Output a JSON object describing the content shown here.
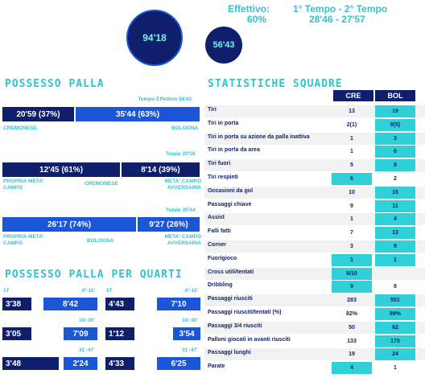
{
  "header": {
    "effettivo_label": "Effettivo:",
    "effettivo_value": "60%",
    "tempi_label": "1° Tempo - 2° Tempo",
    "tempi_value": "28'46 - 27'57",
    "circle_total": "94'18",
    "circle_eff": "56'43"
  },
  "possesso": {
    "title": "POSSESSO PALLA",
    "tempo_effettivo": "Tempo Effettivo 56'43",
    "cre_bar": "20'59 (37%)",
    "bol_bar": "35'44 (63%)",
    "cre_label": "CREMONESE",
    "bol_label": "BOLOGNA",
    "cre_total": "Totale 20'59",
    "cre_own": "12'45 (61%)",
    "cre_opp": "8'14 (39%)",
    "cre_own_label": "PROPRIA META' CAMPO",
    "cre_team": "CREMONESE",
    "cre_opp_label": "META' CAMPO AVVERSARIA",
    "bol_total": "Totale 35'44",
    "bol_own": "26'17 (74%)",
    "bol_opp": "9'27 (26%)",
    "bol_own_label": "PROPRIA META' CAMPO",
    "bol_team": "BOLOGNA",
    "bol_opp_label": "META' CAMPO AVVERSARIA"
  },
  "quarti": {
    "title": "POSSESSO PALLA PER QUARTI",
    "t1": "1T",
    "t2": "2T",
    "q1_label": "0'-15'",
    "q2_label": "16'-30'",
    "q3_label": "31'-47'",
    "q2a_label": "0'-15'",
    "q2b_label": "16'-30'",
    "q2c_label": "31'-47'",
    "t1q1_cre": "3'38",
    "t1q1_bol": "8'42",
    "t1q2_cre": "3'05",
    "t1q2_bol": "7'09",
    "t1q3_cre": "3'48",
    "t1q3_bol": "2'24",
    "t2q1_cre": "4'43",
    "t2q1_bol": "7'10",
    "t2q2_cre": "1'12",
    "t2q2_bol": "3'54",
    "t2q3_cre": "4'33",
    "t2q3_bol": "6'25"
  },
  "stats": {
    "title": "STATISTICHE SQUADRE",
    "col_cre": "CRE",
    "col_bol": "BOL",
    "rows": [
      {
        "label": "Tiri",
        "cre": "13",
        "bol": "19",
        "hl": "bol"
      },
      {
        "label": "Tiri in porta",
        "cre": "2(1)",
        "bol": "9(5)",
        "hl": "bol"
      },
      {
        "label": "Tiri in porta su azione da palla inattiva",
        "cre": "1",
        "bol": "3",
        "hl": "bol"
      },
      {
        "label": "Tiri in porta da area",
        "cre": "1",
        "bol": "6",
        "hl": "bol"
      },
      {
        "label": "Tiri fuori",
        "cre": "5",
        "bol": "8",
        "hl": "bol"
      },
      {
        "label": "Tiri respinti",
        "cre": "6",
        "bol": "2",
        "hl": "cre"
      },
      {
        "label": "Occasioni da gol",
        "cre": "10",
        "bol": "15",
        "hl": "bol"
      },
      {
        "label": "Passaggi chiave",
        "cre": "9",
        "bol": "11",
        "hl": "bol"
      },
      {
        "label": "Assist",
        "cre": "1",
        "bol": "4",
        "hl": "bol"
      },
      {
        "label": "Falli fatti",
        "cre": "7",
        "bol": "13",
        "hl": "bol"
      },
      {
        "label": "Corner",
        "cre": "3",
        "bol": "9",
        "hl": "bol"
      },
      {
        "label": "Fuorigioco",
        "cre": "1",
        "bol": "1",
        "hl": "both"
      },
      {
        "label": "Cross utili/tentati",
        "cre": "6/10",
        "bol": "",
        "hl": "cre"
      },
      {
        "label": "Dribbling",
        "cre": "9",
        "bol": "8",
        "hl": "cre"
      },
      {
        "label": "Passaggi riusciti",
        "cre": "283",
        "bol": "551",
        "hl": "bol"
      },
      {
        "label": "Passaggi riusciti/tentati (%)",
        "cre": "82%",
        "bol": "89%",
        "hl": "bol"
      },
      {
        "label": "Passaggi 3/4 riusciti",
        "cre": "50",
        "bol": "62",
        "hl": "bol"
      },
      {
        "label": "Palloni giocati in avanti riusciti",
        "cre": "133",
        "bol": "170",
        "hl": "bol"
      },
      {
        "label": "Passaggi lunghi",
        "cre": "19",
        "bol": "24",
        "hl": "bol"
      },
      {
        "label": "Parate",
        "cre": "4",
        "bol": "1",
        "hl": "cre"
      }
    ]
  },
  "colors": {
    "navy": "#0f1f6b",
    "blue": "#1a56d6",
    "teal": "#2fd0d8"
  }
}
